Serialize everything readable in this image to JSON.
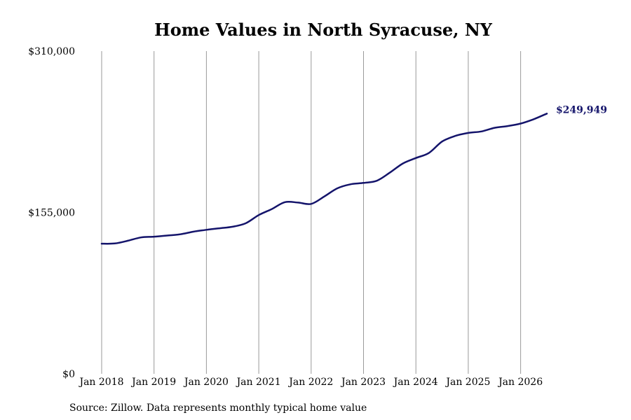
{
  "chart_data": {
    "type": "line",
    "title": "Home Values in North Syracuse, NY",
    "xlabel": "",
    "ylabel": "",
    "ylim": [
      0,
      310000
    ],
    "y_ticks": [
      {
        "value": 0,
        "label": "$0"
      },
      {
        "value": 155000,
        "label": "$155,000"
      },
      {
        "value": 310000,
        "label": "$310,000"
      }
    ],
    "x_ticks": [
      {
        "date": "2018-01",
        "label": "Jan 2018"
      },
      {
        "date": "2019-01",
        "label": "Jan 2019"
      },
      {
        "date": "2020-01",
        "label": "Jan 2020"
      },
      {
        "date": "2021-01",
        "label": "Jan 2021"
      },
      {
        "date": "2022-01",
        "label": "Jan 2022"
      },
      {
        "date": "2023-01",
        "label": "Jan 2023"
      },
      {
        "date": "2024-01",
        "label": "Jan 2024"
      },
      {
        "date": "2025-01",
        "label": "Jan 2025"
      },
      {
        "date": "2026-01",
        "label": "Jan 2026"
      }
    ],
    "x_range": [
      "2018-01",
      "2026-07"
    ],
    "grid": "vertical",
    "line_color": "#14146b",
    "series": [
      {
        "end_label": "$249,949",
        "points": [
          {
            "date": "2018-01",
            "value": 125000
          },
          {
            "date": "2018-04",
            "value": 125200
          },
          {
            "date": "2018-07",
            "value": 127800
          },
          {
            "date": "2018-10",
            "value": 131000
          },
          {
            "date": "2019-01",
            "value": 131700
          },
          {
            "date": "2019-04",
            "value": 132800
          },
          {
            "date": "2019-07",
            "value": 134000
          },
          {
            "date": "2019-10",
            "value": 136500
          },
          {
            "date": "2020-01",
            "value": 138300
          },
          {
            "date": "2020-04",
            "value": 139800
          },
          {
            "date": "2020-07",
            "value": 141300
          },
          {
            "date": "2020-10",
            "value": 144600
          },
          {
            "date": "2021-01",
            "value": 152500
          },
          {
            "date": "2021-04",
            "value": 158300
          },
          {
            "date": "2021-07",
            "value": 164900
          },
          {
            "date": "2021-10",
            "value": 164500
          },
          {
            "date": "2022-01",
            "value": 163200
          },
          {
            "date": "2022-04",
            "value": 170300
          },
          {
            "date": "2022-07",
            "value": 178200
          },
          {
            "date": "2022-10",
            "value": 182000
          },
          {
            "date": "2023-01",
            "value": 183400
          },
          {
            "date": "2023-04",
            "value": 185400
          },
          {
            "date": "2023-07",
            "value": 193200
          },
          {
            "date": "2023-10",
            "value": 202000
          },
          {
            "date": "2024-01",
            "value": 207300
          },
          {
            "date": "2024-04",
            "value": 212200
          },
          {
            "date": "2024-07",
            "value": 223100
          },
          {
            "date": "2024-10",
            "value": 228500
          },
          {
            "date": "2025-01",
            "value": 231400
          },
          {
            "date": "2025-04",
            "value": 232800
          },
          {
            "date": "2025-07",
            "value": 236300
          },
          {
            "date": "2025-10",
            "value": 238000
          },
          {
            "date": "2026-01",
            "value": 240400
          },
          {
            "date": "2026-04",
            "value": 244600
          },
          {
            "date": "2026-07",
            "value": 249949
          }
        ]
      }
    ]
  },
  "footer": {
    "source": "Source: Zillow. Data represents monthly typical home value"
  }
}
